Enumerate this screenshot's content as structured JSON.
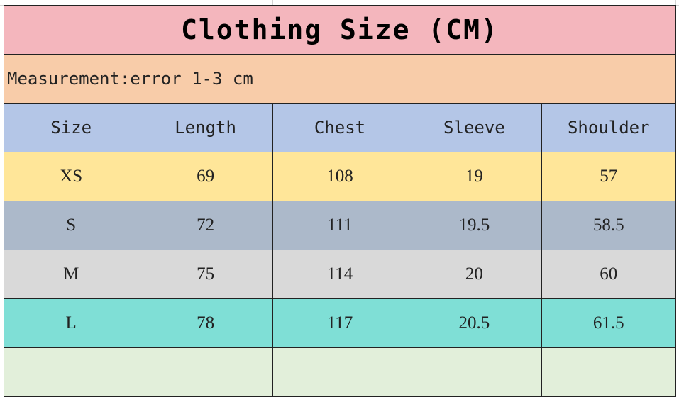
{
  "title": "Clothing Size (CM)",
  "note": "Measurement:error 1-3 cm",
  "headers": [
    "Size",
    "Length",
    "Chest",
    "Sleeve",
    "Shoulder"
  ],
  "rows": [
    [
      "XS",
      "69",
      "108",
      "19",
      "57"
    ],
    [
      "S",
      "72",
      "111",
      "19.5",
      "58.5"
    ],
    [
      "M",
      "75",
      "114",
      "20",
      "60"
    ],
    [
      "L",
      "78",
      "117",
      "20.5",
      "61.5"
    ]
  ],
  "row_colors": [
    "#ffe699",
    "#acb9ca",
    "#d9d9d9",
    "#7fdfd6"
  ]
}
